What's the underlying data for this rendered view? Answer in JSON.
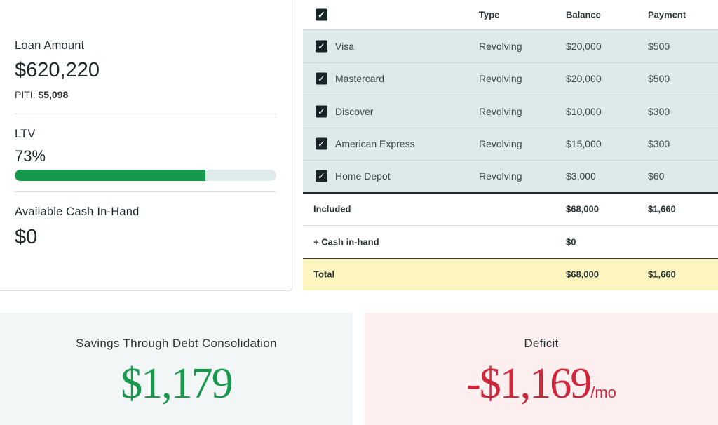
{
  "summary": {
    "loan_label": "Loan Amount",
    "loan_value": "$620,220",
    "piti_label": "PITI:",
    "piti_value": "$5,098",
    "ltv_label": "LTV",
    "ltv_value": "73%",
    "ltv_percent": 73,
    "cash_label": "Available Cash In-Hand",
    "cash_value": "$0"
  },
  "colors": {
    "accent_green": "#16994c",
    "deficit_red": "#d0263b",
    "row_bg": "#dcebea",
    "total_bg": "#fdf5c0"
  },
  "table": {
    "headers": {
      "type": "Type",
      "balance": "Balance",
      "payment": "Payment"
    },
    "rows": [
      {
        "name": "Visa",
        "type": "Revolving",
        "balance": "$20,000",
        "payment": "$500",
        "checked": true
      },
      {
        "name": "Mastercard",
        "type": "Revolving",
        "balance": "$20,000",
        "payment": "$500",
        "checked": true
      },
      {
        "name": "Discover",
        "type": "Revolving",
        "balance": "$10,000",
        "payment": "$300",
        "checked": true
      },
      {
        "name": "American Express",
        "type": "Revolving",
        "balance": "$15,000",
        "payment": "$300",
        "checked": true
      },
      {
        "name": "Home Depot",
        "type": "Revolving",
        "balance": "$3,000",
        "payment": "$60",
        "checked": true
      }
    ],
    "included": {
      "label": "Included",
      "balance": "$68,000",
      "payment": "$1,660"
    },
    "cash": {
      "label": "+ Cash in-hand",
      "balance": "$0"
    },
    "total": {
      "label": "Total",
      "balance": "$68,000",
      "payment": "$1,660"
    }
  },
  "savings": {
    "title": "Savings Through Debt Consolidation",
    "value": "$1,179"
  },
  "deficit": {
    "title": "Deficit",
    "value": "-$1,169",
    "unit": "/mo"
  }
}
